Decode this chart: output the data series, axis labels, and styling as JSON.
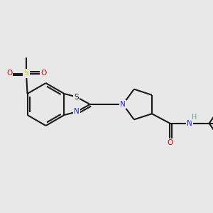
{
  "background_color": "#e8e8e8",
  "bond_color": "#1a1a1a",
  "bond_width": 1.5,
  "atom_colors": {
    "N": "#2222dd",
    "O": "#dd0000",
    "S_sulfonyl": "#cccc00",
    "S_thia": "#1a1a1a",
    "H": "#5f9ea0",
    "C": "#1a1a1a"
  },
  "figsize": [
    3.0,
    3.0
  ],
  "dpi": 100
}
